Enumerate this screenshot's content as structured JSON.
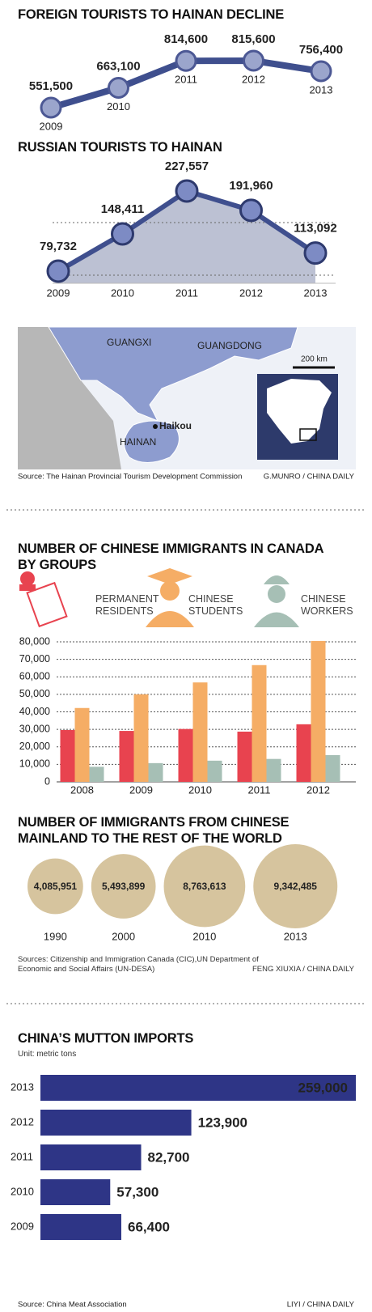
{
  "chart_data": [
    {
      "type": "line",
      "title": "FOREIGN TOURISTS TO HAINAN DECLINE",
      "categories": [
        "2009",
        "2010",
        "2011",
        "2012",
        "2013"
      ],
      "values": [
        551500,
        663100,
        814600,
        815600,
        756400
      ],
      "value_labels": [
        "551,500",
        "663,100",
        "814,600",
        "815,600",
        "756,400"
      ],
      "color": "#3f4f8e"
    },
    {
      "type": "area",
      "title": "RUSSIAN TOURISTS TO HAINAN",
      "categories": [
        "2009",
        "2010",
        "2011",
        "2012",
        "2013"
      ],
      "values": [
        79732,
        148411,
        227557,
        191960,
        113092
      ],
      "value_labels": [
        "79,732",
        "148,411",
        "227,557",
        "191,960",
        "113,092"
      ],
      "color": "#3f4f8e"
    },
    {
      "type": "bar",
      "title": "NUMBER OF CHINESE IMMIGRANTS IN CANADA BY GROUPS",
      "categories": [
        "2008",
        "2009",
        "2010",
        "2011",
        "2012"
      ],
      "series": [
        {
          "name": "PERMANENT RESIDENTS",
          "color": "#e8434f",
          "values": [
            29600,
            29100,
            30200,
            28700,
            32900
          ]
        },
        {
          "name": "CHINESE STUDENTS",
          "color": "#f5ad65",
          "values": [
            42200,
            50000,
            56800,
            66700,
            80500
          ]
        },
        {
          "name": "CHINESE WORKERS",
          "color": "#a6bfb5",
          "values": [
            8600,
            10700,
            12100,
            13100,
            15300
          ]
        }
      ],
      "ylim": [
        0,
        80000
      ],
      "yticks": [
        0,
        {
          "value": 10000,
          "label": "10,000"
        },
        {
          "value": 20000,
          "label": "20,000"
        },
        {
          "value": 30000,
          "label": "30,000"
        },
        {
          "value": 40000,
          "label": "40,000"
        },
        {
          "value": 50000,
          "label": "50,000"
        },
        {
          "value": 60000,
          "label": "60,000"
        },
        {
          "value": 70000,
          "label": "70,000"
        },
        {
          "value": 80000,
          "label": "80,000"
        }
      ],
      "grid": true
    },
    {
      "type": "bubble",
      "title": "NUMBER OF IMMIGRANTS FROM CHINESE MAINLAND TO THE REST OF THE WORLD",
      "categories": [
        "1990",
        "2000",
        "2010",
        "2013"
      ],
      "values": [
        4085951,
        5493899,
        8763613,
        9342485
      ],
      "value_labels": [
        "4,085,951",
        "5,493,899",
        "8,763,613",
        "9,342,485"
      ],
      "color": "#d6c49e",
      "source": "Sources: Citizenship and Immigration Canada (CIC),UN Department of Economic and Social Affairs (UN-DESA)",
      "credit": "FENG XIUXIA / CHINA DAILY"
    },
    {
      "type": "barh",
      "title": "CHINA’S MUTTON IMPORTS",
      "subtitle": "Unit: metric tons",
      "categories": [
        "2013",
        "2012",
        "2011",
        "2010",
        "2009"
      ],
      "values": [
        259000,
        123900,
        82700,
        57300,
        66400
      ],
      "value_labels": [
        "259,000",
        "123,900",
        "82,700",
        "57,300",
        "66,400"
      ],
      "color": "#2e3586",
      "source": "Source: China Meat Association",
      "credit": "LIYI / CHINA DAILY"
    }
  ],
  "map": {
    "labels": [
      "GUANGXI",
      "GUANGDONG",
      "HAINAN",
      "Haikou"
    ],
    "scale": "200 km",
    "source": "Source: The Hainan Provincial Tourism Development Commission",
    "credit": "G.MUNRO / CHINA DAILY"
  }
}
